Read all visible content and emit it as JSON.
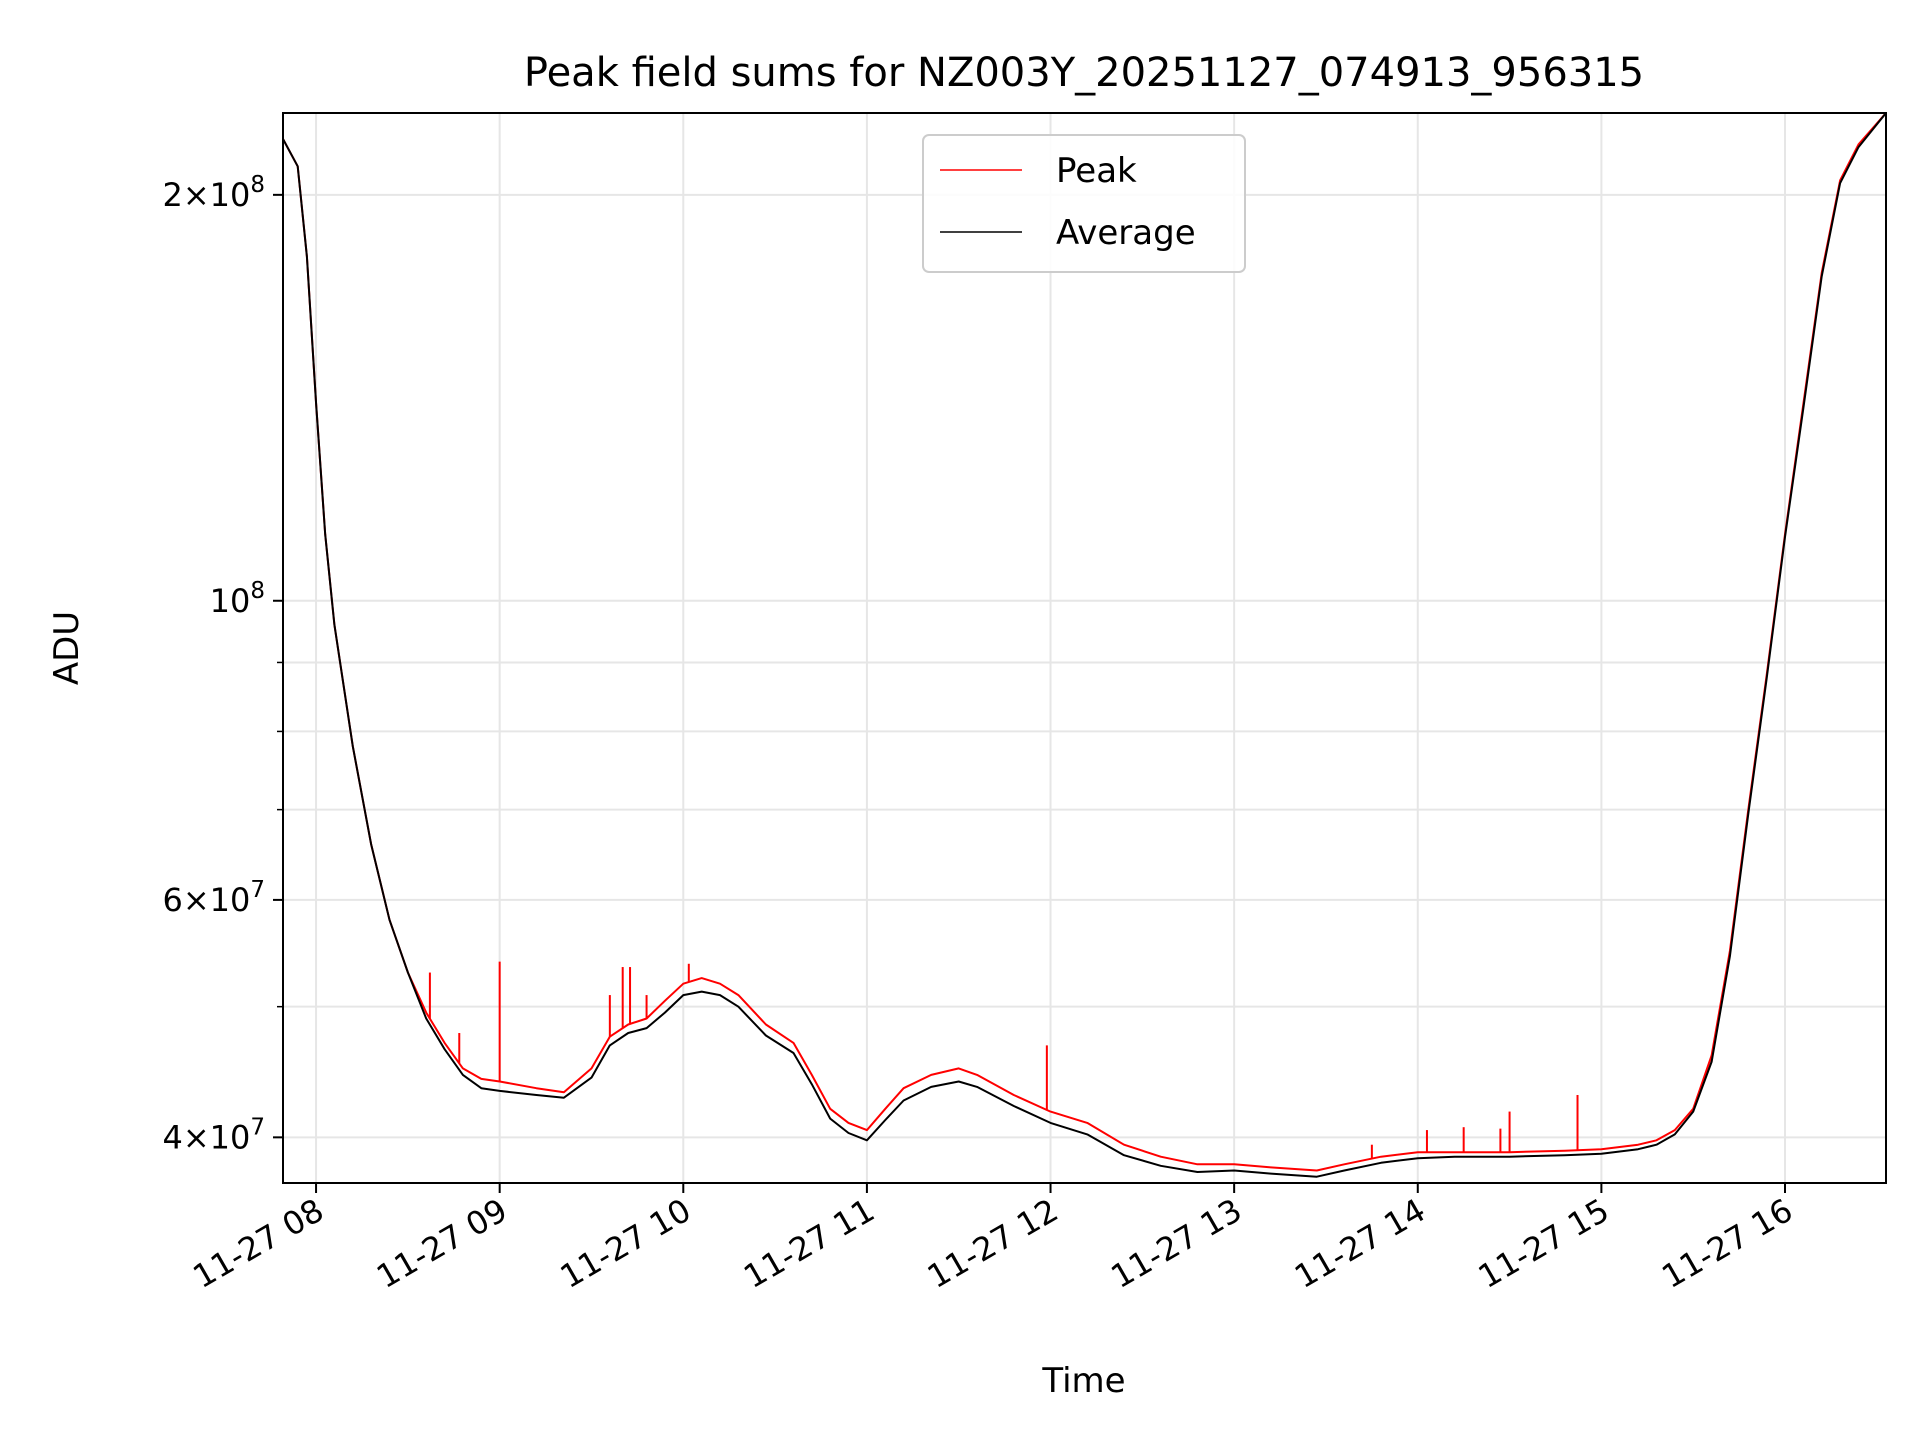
{
  "chart_data": {
    "type": "line",
    "title": "Peak field sums for NZ003Y_20251127_074913_956315",
    "xlabel": "Time",
    "ylabel": "ADU",
    "yscale": "log",
    "ylim": [
      37000000,
      230000000
    ],
    "xlim": [
      7.82,
      16.55
    ],
    "grid": true,
    "legend_position": "upper-center",
    "x_ticks": [
      {
        "value": 8,
        "label": "11-27 08"
      },
      {
        "value": 9,
        "label": "11-27 09"
      },
      {
        "value": 10,
        "label": "11-27 10"
      },
      {
        "value": 11,
        "label": "11-27 11"
      },
      {
        "value": 12,
        "label": "11-27 12"
      },
      {
        "value": 13,
        "label": "11-27 13"
      },
      {
        "value": 14,
        "label": "11-27 14"
      },
      {
        "value": 15,
        "label": "11-27 15"
      },
      {
        "value": 16,
        "label": "11-27 16"
      }
    ],
    "y_major_ticks": [
      {
        "value": 40000000,
        "mantissa": "4",
        "exponent": "7"
      },
      {
        "value": 60000000,
        "mantissa": "6",
        "exponent": "7"
      },
      {
        "value": 100000000,
        "mantissa": "",
        "exponent": "8"
      },
      {
        "value": 200000000,
        "mantissa": "2",
        "exponent": "8"
      }
    ],
    "y_minor_ticks": [
      50000000,
      70000000,
      80000000,
      90000000
    ],
    "series": [
      {
        "name": "Peak",
        "color": "#ff0000",
        "x": [
          7.82,
          7.9,
          7.95,
          8.0,
          8.05,
          8.1,
          8.2,
          8.3,
          8.4,
          8.5,
          8.6,
          8.7,
          8.8,
          8.9,
          9.0,
          9.2,
          9.35,
          9.5,
          9.6,
          9.7,
          9.8,
          9.9,
          10.0,
          10.1,
          10.2,
          10.3,
          10.45,
          10.6,
          10.7,
          10.8,
          10.9,
          11.0,
          11.1,
          11.2,
          11.35,
          11.5,
          11.6,
          11.8,
          12.0,
          12.2,
          12.4,
          12.6,
          12.8,
          13.0,
          13.2,
          13.45,
          13.6,
          13.8,
          14.0,
          14.2,
          14.5,
          14.8,
          15.0,
          15.2,
          15.3,
          15.4,
          15.5,
          15.6,
          15.7,
          15.8,
          15.9,
          16.0,
          16.1,
          16.2,
          16.3,
          16.4,
          16.55
        ],
        "values": [
          220000000,
          210000000,
          180000000,
          140000000,
          112000000,
          96000000,
          78000000,
          66000000,
          58000000,
          53000000,
          49500000,
          47000000,
          45000000,
          44200000,
          44000000,
          43500000,
          43200000,
          45000000,
          47500000,
          48500000,
          49000000,
          50500000,
          52000000,
          52500000,
          52000000,
          51000000,
          48500000,
          47000000,
          44500000,
          42000000,
          41000000,
          40500000,
          42000000,
          43500000,
          44500000,
          45000000,
          44500000,
          43000000,
          41800000,
          41000000,
          39500000,
          38700000,
          38200000,
          38200000,
          38000000,
          37800000,
          38200000,
          38700000,
          39000000,
          39000000,
          39000000,
          39100000,
          39200000,
          39500000,
          39800000,
          40500000,
          42000000,
          46000000,
          55000000,
          70000000,
          88000000,
          112000000,
          140000000,
          175000000,
          205000000,
          218000000,
          230000000
        ],
        "spikes": [
          {
            "x": 8.62,
            "value": 53000000
          },
          {
            "x": 8.78,
            "value": 47800000
          },
          {
            "x": 9.0,
            "value": 54000000
          },
          {
            "x": 9.6,
            "value": 51000000
          },
          {
            "x": 9.67,
            "value": 53500000
          },
          {
            "x": 9.71,
            "value": 53500000
          },
          {
            "x": 9.8,
            "value": 51000000
          },
          {
            "x": 10.03,
            "value": 53800000
          },
          {
            "x": 11.98,
            "value": 46800000
          },
          {
            "x": 13.75,
            "value": 39500000
          },
          {
            "x": 14.05,
            "value": 40500000
          },
          {
            "x": 14.25,
            "value": 40700000
          },
          {
            "x": 14.45,
            "value": 40600000
          },
          {
            "x": 14.5,
            "value": 41800000
          },
          {
            "x": 14.87,
            "value": 43000000
          }
        ]
      },
      {
        "name": "Average",
        "color": "#000000",
        "x": [
          7.82,
          7.9,
          7.95,
          8.0,
          8.05,
          8.1,
          8.2,
          8.3,
          8.4,
          8.5,
          8.6,
          8.7,
          8.8,
          8.9,
          9.0,
          9.2,
          9.35,
          9.5,
          9.6,
          9.7,
          9.8,
          9.9,
          10.0,
          10.1,
          10.2,
          10.3,
          10.45,
          10.6,
          10.7,
          10.8,
          10.9,
          11.0,
          11.1,
          11.2,
          11.35,
          11.5,
          11.6,
          11.8,
          12.0,
          12.2,
          12.4,
          12.6,
          12.8,
          13.0,
          13.2,
          13.45,
          13.6,
          13.8,
          14.0,
          14.2,
          14.5,
          14.8,
          15.0,
          15.2,
          15.3,
          15.4,
          15.5,
          15.6,
          15.7,
          15.8,
          15.9,
          16.0,
          16.1,
          16.2,
          16.3,
          16.4,
          16.55
        ],
        "values": [
          220000000,
          210000000,
          180000000,
          140000000,
          112000000,
          96000000,
          78000000,
          66000000,
          58000000,
          53000000,
          49000000,
          46500000,
          44500000,
          43500000,
          43300000,
          43000000,
          42800000,
          44300000,
          46800000,
          47800000,
          48200000,
          49500000,
          51000000,
          51300000,
          51000000,
          50000000,
          47600000,
          46200000,
          43800000,
          41300000,
          40300000,
          39800000,
          41200000,
          42600000,
          43600000,
          44000000,
          43600000,
          42200000,
          41000000,
          40200000,
          38800000,
          38100000,
          37700000,
          37800000,
          37600000,
          37400000,
          37800000,
          38300000,
          38600000,
          38700000,
          38700000,
          38800000,
          38900000,
          39200000,
          39500000,
          40200000,
          41800000,
          45500000,
          54500000,
          69500000,
          87500000,
          111500000,
          139000000,
          174000000,
          204000000,
          217000000,
          230000000
        ]
      }
    ]
  }
}
